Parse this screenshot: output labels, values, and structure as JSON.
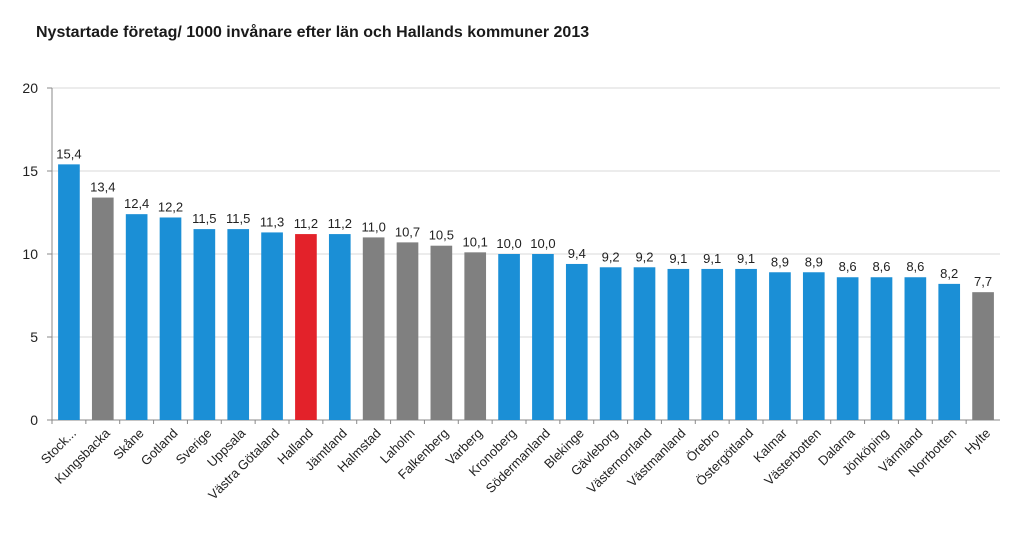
{
  "chart_data": {
    "type": "bar",
    "title": "Nystartade företag/ 1000 invånare efter län och Hallands kommuner 2013",
    "xlabel": "",
    "ylabel": "",
    "ylim": [
      0,
      20
    ],
    "yticks": [
      0,
      5,
      10,
      15,
      20
    ],
    "grid": true,
    "colors": {
      "län": "#1b8fd6",
      "kommun": "#808080",
      "halland": "#e3222a"
    },
    "categories": [
      "Stock...",
      "Kungsbacka",
      "Skåne",
      "Gotland",
      "Sverige",
      "Uppsala",
      "Västra Götaland",
      "Halland",
      "Jämtland",
      "Halmstad",
      "Laholm",
      "Falkenberg",
      "Varberg",
      "Kronoberg",
      "Södermanland",
      "Blekinge",
      "Gävleborg",
      "Västernorrland",
      "Västmanland",
      "Örebro",
      "Östergötland",
      "Kalmar",
      "Västerbotten",
      "Dalarna",
      "Jönköping",
      "Värmland",
      "Norrbotten",
      "Hylte"
    ],
    "values": [
      15.4,
      13.4,
      12.4,
      12.2,
      11.5,
      11.5,
      11.3,
      11.2,
      11.2,
      11.0,
      10.7,
      10.5,
      10.1,
      10.0,
      10.0,
      9.4,
      9.2,
      9.2,
      9.1,
      9.1,
      9.1,
      8.9,
      8.9,
      8.6,
      8.6,
      8.6,
      8.2,
      7.7
    ],
    "value_labels": [
      "15,4",
      "13,4",
      "12,4",
      "12,2",
      "11,5",
      "11,5",
      "11,3",
      "11,2",
      "11,2",
      "11,0",
      "10,7",
      "10,5",
      "10,1",
      "10,0",
      "10,0",
      "9,4",
      "9,2",
      "9,2",
      "9,1",
      "9,1",
      "9,1",
      "8,9",
      "8,9",
      "8,6",
      "8,6",
      "8,6",
      "8,2",
      "7,7"
    ],
    "bar_groups": [
      "län",
      "kommun",
      "län",
      "län",
      "län",
      "län",
      "län",
      "halland",
      "län",
      "kommun",
      "kommun",
      "kommun",
      "kommun",
      "län",
      "län",
      "län",
      "län",
      "län",
      "län",
      "län",
      "län",
      "län",
      "län",
      "län",
      "län",
      "län",
      "län",
      "kommun"
    ]
  }
}
